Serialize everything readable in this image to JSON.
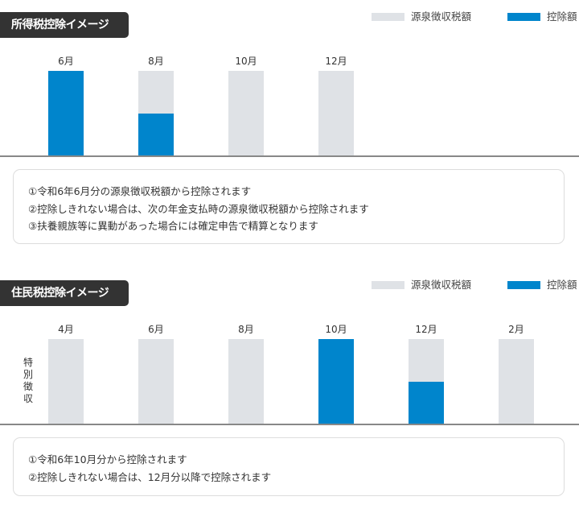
{
  "legend": {
    "withholding": "源泉徴収税額",
    "deduction": "控除額"
  },
  "colors": {
    "withholding": "#dfe2e6",
    "deduction": "#0085cc",
    "badge": "#333333"
  },
  "chart_data": [
    {
      "type": "bar",
      "title": "所得税控除イメージ",
      "categories": [
        "6月",
        "8月",
        "10月",
        "12月"
      ],
      "stacked": "overlay",
      "series": [
        {
          "name": "源泉徴収税額",
          "values": [
            1,
            1,
            1,
            1
          ]
        },
        {
          "name": "控除額",
          "values": [
            1,
            0.5,
            0,
            0
          ]
        }
      ],
      "ylabel": "",
      "notes": [
        "①令和6年6月分の源泉徴収税額から控除されます",
        "②控除しきれない場合は、次の年金支払時の源泉徴収税額から控除されます",
        "③扶養親族等に異動があった場合には確定申告で精算となります"
      ]
    },
    {
      "type": "bar",
      "title": "住民税控除イメージ",
      "categories": [
        "4月",
        "6月",
        "8月",
        "10月",
        "12月",
        "2月"
      ],
      "stacked": "overlay",
      "series": [
        {
          "name": "源泉徴収税額",
          "values": [
            1,
            1,
            1,
            1,
            1,
            1
          ]
        },
        {
          "name": "控除額",
          "values": [
            0,
            0,
            0,
            1,
            0.5,
            0
          ]
        }
      ],
      "ylabel": "特別徴収",
      "notes": [
        "①令和6年10月分から控除されます",
        "②控除しきれない場合は、12月分以降で控除されます"
      ]
    }
  ]
}
